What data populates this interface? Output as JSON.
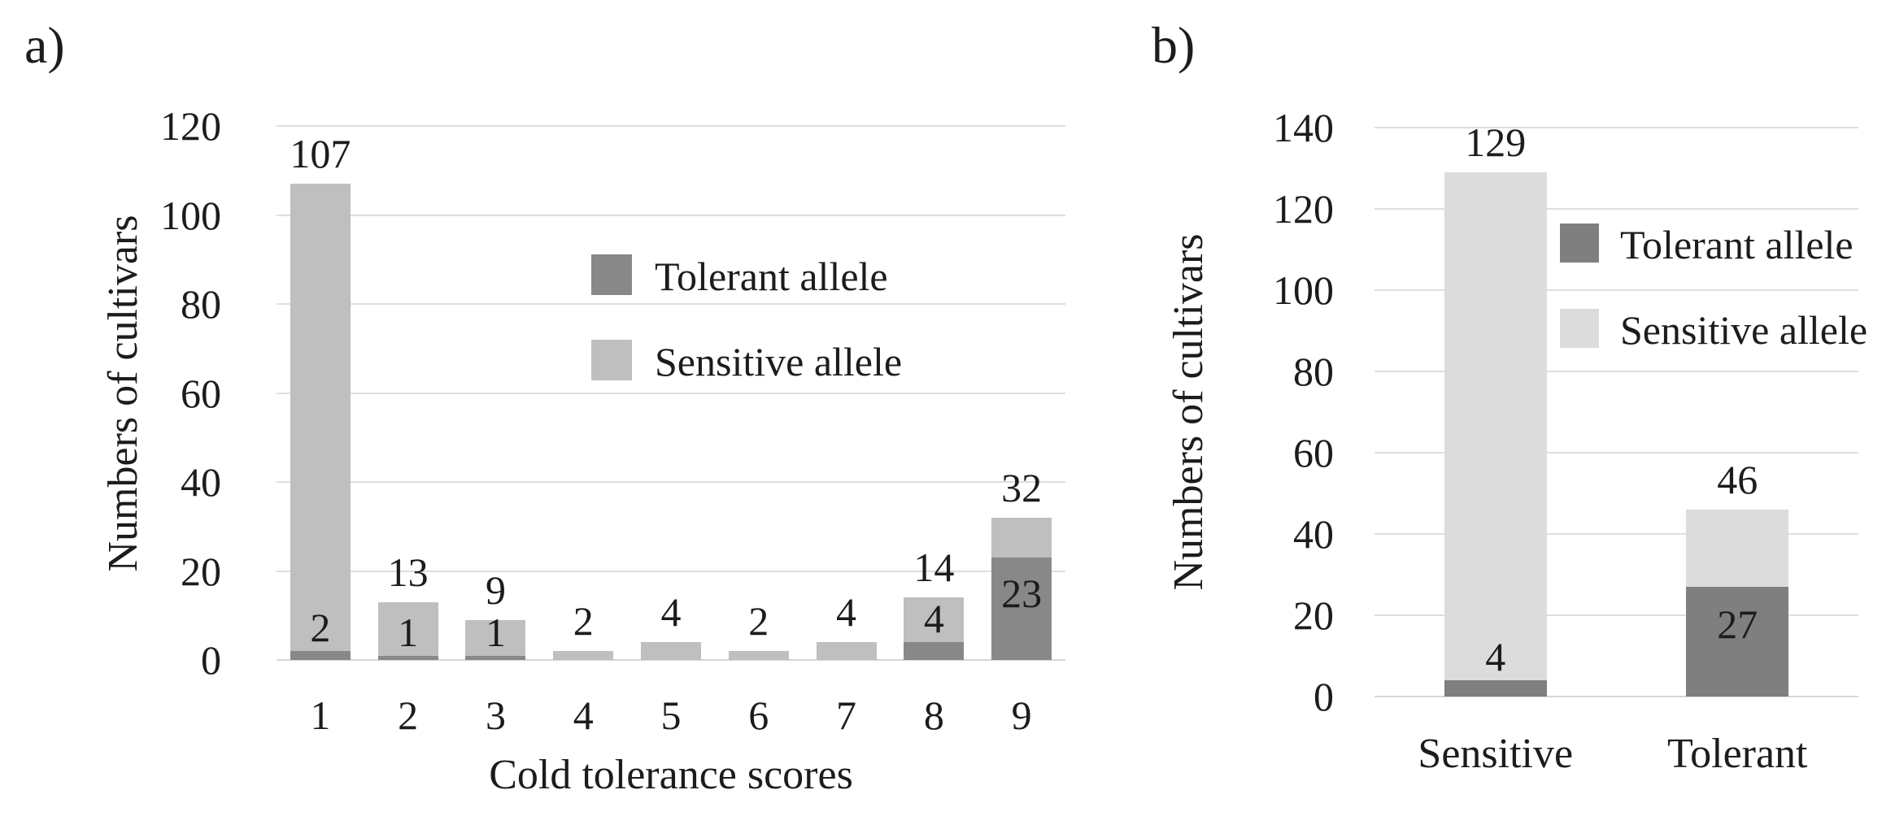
{
  "figure": {
    "panel_a_label": "a)",
    "panel_b_label": "b)"
  },
  "colors": {
    "gridline": "#dedede",
    "text": "#1c1c1c",
    "panel_a_tolerant": "#888888",
    "panel_a_sensitive": "#bfbfbf",
    "panel_b_tolerant": "#7f7f7f",
    "panel_b_sensitive": "#dcdcdc"
  },
  "chart_data": [
    {
      "id": "a",
      "type": "bar",
      "stacked": true,
      "panel_label": "a)",
      "xlabel": "Cold tolerance scores",
      "ylabel": "Numbers of cultivars",
      "categories": [
        "1",
        "2",
        "3",
        "4",
        "5",
        "6",
        "7",
        "8",
        "9"
      ],
      "series": [
        {
          "name": "Tolerant allele",
          "color": "#888888",
          "values": [
            2,
            1,
            1,
            0,
            0,
            0,
            0,
            4,
            23
          ]
        },
        {
          "name": "Sensitive allele",
          "color": "#bfbfbf",
          "values": [
            105,
            12,
            8,
            2,
            4,
            2,
            4,
            10,
            9
          ]
        }
      ],
      "totals": [
        107,
        13,
        9,
        2,
        4,
        2,
        4,
        14,
        32
      ],
      "segment_labels": [
        "2",
        "1",
        "1",
        "",
        "",
        "",
        "",
        "4",
        "23"
      ],
      "ylim": [
        0,
        120
      ],
      "ytick_step": 20,
      "yticks": [
        0,
        20,
        40,
        60,
        80,
        100,
        120
      ],
      "grid": true,
      "legend_position": "inside-center-right",
      "legend": [
        "Tolerant allele",
        "Sensitive allele"
      ]
    },
    {
      "id": "b",
      "type": "bar",
      "stacked": true,
      "panel_label": "b)",
      "xlabel": "",
      "ylabel": "Numbers of cultivars",
      "categories": [
        "Sensitive",
        "Tolerant"
      ],
      "series": [
        {
          "name": "Tolerant allele",
          "color": "#7f7f7f",
          "values": [
            4,
            27
          ]
        },
        {
          "name": "Sensitive allele",
          "color": "#dcdcdc",
          "values": [
            125,
            19
          ]
        }
      ],
      "totals": [
        129,
        46
      ],
      "segment_labels": [
        "4",
        "27"
      ],
      "ylim": [
        0,
        140
      ],
      "ytick_step": 20,
      "yticks": [
        0,
        20,
        40,
        60,
        80,
        100,
        120,
        140
      ],
      "grid": true,
      "legend_position": "inside-right",
      "legend": [
        "Tolerant allele",
        "Sensitive allele"
      ]
    }
  ]
}
